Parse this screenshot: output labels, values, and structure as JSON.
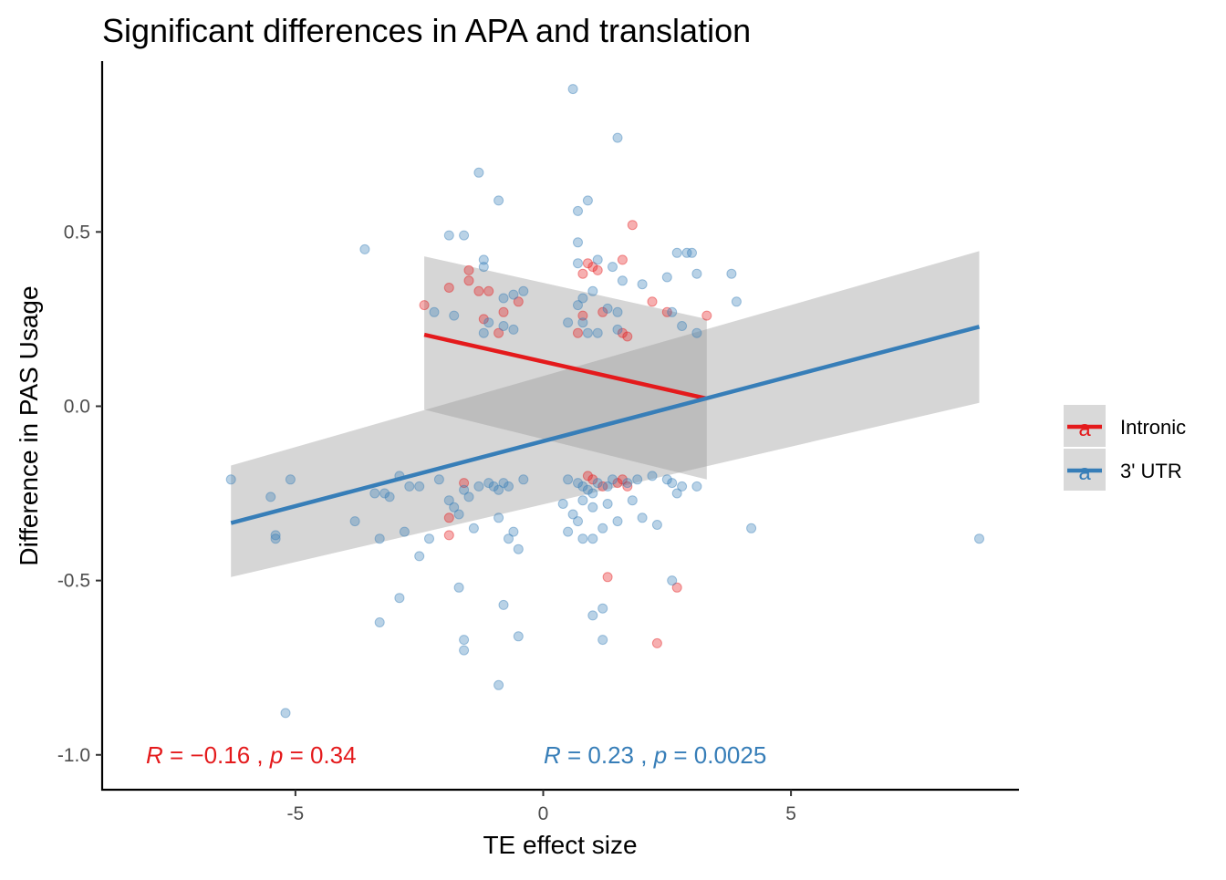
{
  "chart_data": {
    "type": "scatter",
    "title": "Significant differences in APA and translation",
    "xlabel": "TE effect size",
    "ylabel": "Difference in PAS Usage",
    "xlim": [
      -8.9,
      9.6
    ],
    "ylim": [
      -1.1,
      0.99
    ],
    "x_ticks": [
      -5,
      0,
      5
    ],
    "x_tick_labels": [
      "-5",
      "0",
      "5"
    ],
    "y_ticks": [
      -1.0,
      -0.5,
      0.0,
      0.5
    ],
    "y_tick_labels": [
      "-1.0",
      "-0.5",
      "0.0",
      "0.5"
    ],
    "grid": false,
    "legend_position": "right",
    "series": [
      {
        "name": "Intronic",
        "color": "#e41a1c",
        "points": [
          [
            1.8,
            0.52
          ],
          [
            -1.5,
            0.39
          ],
          [
            -1.5,
            0.36
          ],
          [
            -1.9,
            0.34
          ],
          [
            -2.4,
            0.29
          ],
          [
            -1.3,
            0.33
          ],
          [
            -1.1,
            0.33
          ],
          [
            -0.5,
            0.3
          ],
          [
            -0.8,
            0.27
          ],
          [
            -1.2,
            0.25
          ],
          [
            -0.9,
            0.21
          ],
          [
            0.9,
            0.41
          ],
          [
            1.0,
            0.4
          ],
          [
            1.1,
            0.39
          ],
          [
            0.8,
            0.38
          ],
          [
            1.6,
            0.42
          ],
          [
            0.8,
            0.26
          ],
          [
            1.2,
            0.27
          ],
          [
            0.7,
            0.21
          ],
          [
            1.6,
            0.21
          ],
          [
            1.7,
            0.2
          ],
          [
            2.2,
            0.3
          ],
          [
            2.5,
            0.27
          ],
          [
            3.3,
            0.26
          ],
          [
            -1.6,
            -0.22
          ],
          [
            -1.9,
            -0.32
          ],
          [
            -1.9,
            -0.37
          ],
          [
            0.9,
            -0.2
          ],
          [
            1.0,
            -0.21
          ],
          [
            1.2,
            -0.23
          ],
          [
            1.5,
            -0.22
          ],
          [
            1.6,
            -0.21
          ],
          [
            1.7,
            -0.23
          ],
          [
            1.3,
            -0.49
          ],
          [
            2.7,
            -0.52
          ],
          [
            2.3,
            -0.68
          ]
        ],
        "trend": {
          "x": [
            -2.4,
            3.3
          ],
          "y": [
            0.205,
            0.022
          ],
          "ci_lower": [
            -0.01,
            -0.21
          ],
          "ci_upper": [
            0.43,
            0.25
          ]
        },
        "annotation": {
          "R": "-0.16",
          "p": "0.34"
        }
      },
      {
        "name": "3' UTR",
        "color": "#377eb8",
        "points": [
          [
            0.6,
            0.91
          ],
          [
            1.5,
            0.77
          ],
          [
            -1.3,
            0.67
          ],
          [
            -0.9,
            0.59
          ],
          [
            0.9,
            0.59
          ],
          [
            0.7,
            0.56
          ],
          [
            -1.9,
            0.49
          ],
          [
            -1.6,
            0.49
          ],
          [
            0.7,
            0.47
          ],
          [
            -3.6,
            0.45
          ],
          [
            -1.2,
            0.42
          ],
          [
            -1.2,
            0.4
          ],
          [
            0.7,
            0.41
          ],
          [
            1.1,
            0.42
          ],
          [
            1.4,
            0.4
          ],
          [
            2.7,
            0.44
          ],
          [
            2.9,
            0.44
          ],
          [
            3.0,
            0.44
          ],
          [
            2.5,
            0.37
          ],
          [
            3.1,
            0.38
          ],
          [
            3.8,
            0.38
          ],
          [
            1.6,
            0.36
          ],
          [
            2.0,
            0.35
          ],
          [
            -0.4,
            0.33
          ],
          [
            -0.6,
            0.32
          ],
          [
            -0.8,
            0.31
          ],
          [
            3.9,
            0.3
          ],
          [
            1.0,
            0.33
          ],
          [
            0.8,
            0.31
          ],
          [
            0.7,
            0.29
          ],
          [
            1.3,
            0.28
          ],
          [
            1.5,
            0.27
          ],
          [
            -2.2,
            0.27
          ],
          [
            -1.8,
            0.26
          ],
          [
            -1.1,
            0.24
          ],
          [
            -0.8,
            0.23
          ],
          [
            -0.6,
            0.22
          ],
          [
            -1.2,
            0.21
          ],
          [
            0.5,
            0.24
          ],
          [
            0.8,
            0.24
          ],
          [
            0.9,
            0.21
          ],
          [
            1.1,
            0.21
          ],
          [
            2.6,
            0.27
          ],
          [
            2.8,
            0.23
          ],
          [
            3.1,
            0.21
          ],
          [
            1.5,
            0.22
          ],
          [
            -6.3,
            -0.21
          ],
          [
            -5.1,
            -0.21
          ],
          [
            -5.5,
            -0.26
          ],
          [
            -5.4,
            -0.37
          ],
          [
            -5.4,
            -0.38
          ],
          [
            -3.4,
            -0.25
          ],
          [
            -3.2,
            -0.25
          ],
          [
            -3.1,
            -0.26
          ],
          [
            -2.9,
            -0.2
          ],
          [
            -2.7,
            -0.23
          ],
          [
            -2.5,
            -0.23
          ],
          [
            -2.1,
            -0.21
          ],
          [
            -1.9,
            -0.27
          ],
          [
            -1.8,
            -0.29
          ],
          [
            -1.7,
            -0.31
          ],
          [
            -1.6,
            -0.24
          ],
          [
            -1.5,
            -0.26
          ],
          [
            -1.3,
            -0.23
          ],
          [
            -1.1,
            -0.22
          ],
          [
            -1.0,
            -0.23
          ],
          [
            -0.9,
            -0.24
          ],
          [
            -0.8,
            -0.22
          ],
          [
            -0.7,
            -0.23
          ],
          [
            -0.4,
            -0.21
          ],
          [
            -0.6,
            -0.36
          ],
          [
            -0.9,
            -0.32
          ],
          [
            -1.4,
            -0.35
          ],
          [
            -3.8,
            -0.33
          ],
          [
            -3.3,
            -0.38
          ],
          [
            -2.8,
            -0.36
          ],
          [
            -2.5,
            -0.43
          ],
          [
            -2.3,
            -0.38
          ],
          [
            -0.7,
            -0.38
          ],
          [
            -0.5,
            -0.41
          ],
          [
            -2.9,
            -0.55
          ],
          [
            -1.7,
            -0.52
          ],
          [
            -0.8,
            -0.57
          ],
          [
            -3.3,
            -0.62
          ],
          [
            -1.6,
            -0.67
          ],
          [
            -1.6,
            -0.7
          ],
          [
            -0.5,
            -0.66
          ],
          [
            -0.9,
            -0.8
          ],
          [
            -5.2,
            -0.88
          ],
          [
            0.5,
            -0.21
          ],
          [
            0.7,
            -0.22
          ],
          [
            0.8,
            -0.23
          ],
          [
            0.9,
            -0.24
          ],
          [
            1.0,
            -0.25
          ],
          [
            1.1,
            -0.22
          ],
          [
            1.3,
            -0.23
          ],
          [
            1.4,
            -0.21
          ],
          [
            1.7,
            -0.22
          ],
          [
            1.9,
            -0.21
          ],
          [
            2.2,
            -0.2
          ],
          [
            2.5,
            -0.21
          ],
          [
            2.6,
            -0.22
          ],
          [
            2.8,
            -0.23
          ],
          [
            3.1,
            -0.23
          ],
          [
            0.4,
            -0.28
          ],
          [
            0.6,
            -0.31
          ],
          [
            0.7,
            -0.33
          ],
          [
            0.8,
            -0.27
          ],
          [
            1.0,
            -0.29
          ],
          [
            1.2,
            -0.35
          ],
          [
            1.3,
            -0.28
          ],
          [
            1.8,
            -0.27
          ],
          [
            2.0,
            -0.32
          ],
          [
            2.3,
            -0.34
          ],
          [
            2.7,
            -0.25
          ],
          [
            0.5,
            -0.36
          ],
          [
            0.8,
            -0.38
          ],
          [
            1.0,
            -0.38
          ],
          [
            1.5,
            -0.33
          ],
          [
            4.2,
            -0.35
          ],
          [
            8.8,
            -0.38
          ],
          [
            1.0,
            -0.6
          ],
          [
            1.2,
            -0.58
          ],
          [
            1.2,
            -0.67
          ],
          [
            2.6,
            -0.5
          ]
        ],
        "trend": {
          "x": [
            -6.3,
            8.8
          ],
          "y": [
            -0.335,
            0.228
          ],
          "ci_lower": [
            -0.49,
            0.01
          ],
          "ci_upper": [
            -0.17,
            0.445
          ]
        },
        "annotation": {
          "R": "0.23",
          "p": "0.0025"
        }
      }
    ]
  }
}
